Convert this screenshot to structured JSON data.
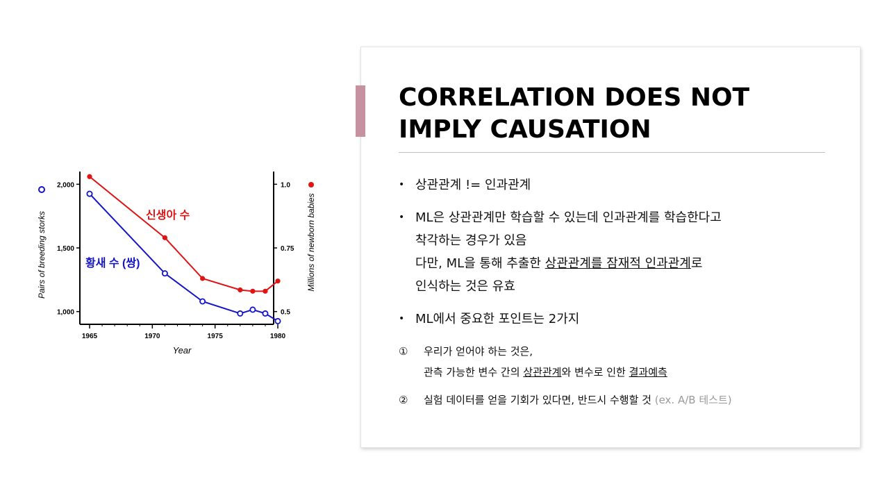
{
  "slide": {
    "title_lines": [
      "CORRELATION DOES NOT",
      "IMPLY CAUSATION"
    ],
    "bullets": [
      {
        "text": "상관관계 != 인과관계"
      },
      {
        "line1": "ML은 상관관계만 학습할 수 있는데 인과관계를 학습한다고",
        "line2": "착각하는 경우가 있음",
        "line3_pre": "다만, ML을 통해 추출한 ",
        "line3_u": "상관관계를 잠재적 인과관계",
        "line3_post": "로",
        "line4": "인식하는 것은 유효"
      },
      {
        "text": "ML에서 중요한 포인트는 2가지"
      }
    ],
    "numbered": [
      {
        "mark": "①",
        "line1": "우리가 얻어야 하는 것은,",
        "line2_pre": "관측 가능한 변수 간의 ",
        "line2_u1": "상관관계",
        "line2_mid": "와 변수로 인한 ",
        "line2_u2": "결과예측"
      },
      {
        "mark": "②",
        "text": "실험 데이터를 얻을 기회가 있다면, 반드시 수행할 것",
        "note": "(ex. A/B 테스트)"
      }
    ]
  },
  "chart_data": {
    "type": "line",
    "xlabel": "Year",
    "ylabel_left": "Pairs of breeding storks",
    "ylabel_right": "Millions of newborn babies",
    "xlim": [
      1965,
      1980
    ],
    "ylim_left": [
      900,
      2100
    ],
    "ylim_right": [
      0.45,
      1.05
    ],
    "x_ticks": [
      1965,
      1970,
      1975,
      1980
    ],
    "y_ticks_left": [
      1000,
      1500,
      2000
    ],
    "y_ticks_left_labels": [
      "1,000",
      "1,500",
      "2,000"
    ],
    "y_ticks_right": [
      0.5,
      0.75,
      1.0
    ],
    "y_ticks_right_labels": [
      "0.5",
      "0.75",
      "1.0"
    ],
    "colors": {
      "storks": "#1414c8",
      "babies": "#e01414"
    },
    "series": [
      {
        "name": "황새 수 (쌍)",
        "axis": "left",
        "marker": "open-circle",
        "x": [
          1965,
          1971,
          1974,
          1977,
          1978,
          1979,
          1980
        ],
        "y": [
          1925,
          1300,
          1080,
          985,
          1015,
          985,
          925
        ]
      },
      {
        "name": "신생아 수",
        "axis": "right",
        "marker": "filled-circle",
        "x": [
          1965,
          1971,
          1974,
          1977,
          1978,
          1979,
          1980
        ],
        "y": [
          1.03,
          0.79,
          0.63,
          0.585,
          0.58,
          0.58,
          0.62
        ]
      }
    ]
  }
}
